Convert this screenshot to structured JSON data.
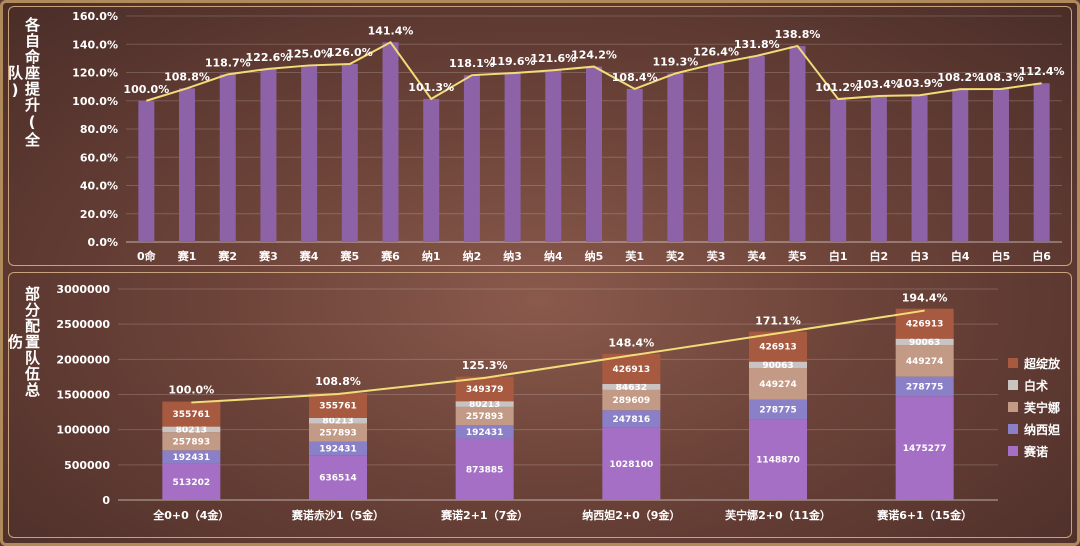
{
  "top_panel": {
    "title": "各自命座提升(全队)"
  },
  "bottom_panel": {
    "title": "部分配置队伍总伤"
  },
  "chart_data": [
    {
      "type": "bar",
      "title": "各自命座提升(全队)",
      "categories": [
        "0命",
        "赛1",
        "赛2",
        "赛3",
        "赛4",
        "赛5",
        "赛6",
        "纳1",
        "纳2",
        "纳3",
        "纳4",
        "纳5",
        "芙1",
        "芙2",
        "芙3",
        "芙4",
        "芙5",
        "白1",
        "白2",
        "白3",
        "白4",
        "白5",
        "白6"
      ],
      "values": [
        100.0,
        108.8,
        118.7,
        122.6,
        125.0,
        126.0,
        141.4,
        101.3,
        118.1,
        119.6,
        121.6,
        124.2,
        108.4,
        119.3,
        126.4,
        131.8,
        138.8,
        101.2,
        103.4,
        103.9,
        108.2,
        108.3,
        112.4
      ],
      "value_labels": [
        "100.0%",
        "108.8%",
        "118.7%",
        "122.6%",
        "125.0%",
        "126.0%",
        "141.4%",
        "101.3%",
        "118.1%",
        "119.6%",
        "121.6%",
        "124.2%",
        "108.4%",
        "119.3%",
        "126.4%",
        "131.8%",
        "138.8%",
        "101.2%",
        "103.4%",
        "103.9%",
        "108.2%",
        "108.3%",
        "112.4%"
      ],
      "line_overlay": true,
      "ylim": [
        0,
        160
      ],
      "y_ticks": [
        "0.0%",
        "20.0%",
        "40.0%",
        "60.0%",
        "80.0%",
        "100.0%",
        "120.0%",
        "140.0%",
        "160.0%"
      ],
      "grid": true,
      "colors": {
        "bar": "#8e62a6",
        "line": "#f0dc78"
      }
    },
    {
      "type": "bar",
      "stacked": true,
      "title": "部分配置队伍总伤",
      "categories": [
        "全0+0（4金）",
        "赛诺赤沙1（5金）",
        "赛诺2+1（7金）",
        "纳西妲2+0（9金）",
        "芙宁娜2+0（11金）",
        "赛诺6+1（15金）"
      ],
      "series": [
        {
          "name": "赛诺",
          "color": "#a46fc4",
          "values": [
            513202,
            636514,
            873885,
            1028100,
            1148870,
            1475277
          ]
        },
        {
          "name": "纳西妲",
          "color": "#8a80c8",
          "values": [
            192431,
            192431,
            192431,
            247816,
            278775,
            278775
          ]
        },
        {
          "name": "芙宁娜",
          "color": "#c39a86",
          "values": [
            257893,
            257893,
            257893,
            289609,
            449274,
            449274
          ]
        },
        {
          "name": "白术",
          "color": "#c9c3c1",
          "values": [
            80213,
            80213,
            80213,
            84632,
            90063,
            90063
          ]
        },
        {
          "name": "超绽放",
          "color": "#a85a40",
          "values": [
            355761,
            355761,
            349379,
            426913,
            426913,
            426913
          ]
        }
      ],
      "totals_label": [
        "100.0%",
        "108.8%",
        "125.3%",
        "148.4%",
        "171.1%",
        "194.4%"
      ],
      "totals_percent": [
        100.0,
        108.8,
        125.3,
        148.4,
        171.1,
        194.4
      ],
      "line_overlay": true,
      "ylim": [
        0,
        3000000
      ],
      "y_ticks": [
        "0",
        "500000",
        "1000000",
        "1500000",
        "2000000",
        "2500000",
        "3000000"
      ],
      "grid": true,
      "legend_position": "right",
      "legend_order": [
        "超绽放",
        "白术",
        "芙宁娜",
        "纳西妲",
        "赛诺"
      ],
      "colors": {
        "line": "#f0dc78"
      }
    }
  ]
}
